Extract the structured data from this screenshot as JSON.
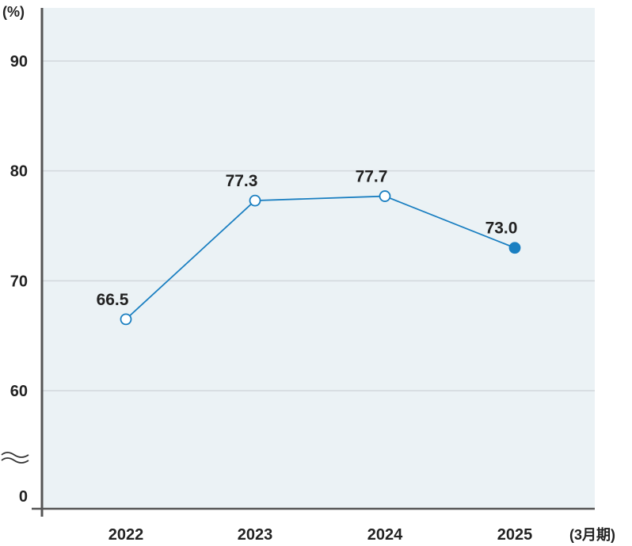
{
  "chart_data": {
    "type": "line",
    "title": "",
    "xlabel": "",
    "ylabel": "",
    "y_unit": "(%)",
    "x_unit": "(3月期)",
    "categories": [
      "2022",
      "2023",
      "2024",
      "2025"
    ],
    "values": [
      66.5,
      77.3,
      77.7,
      73.0
    ],
    "value_labels": [
      "66.5",
      "77.3",
      "77.7",
      "73.0"
    ],
    "yticks": [
      "0",
      "60",
      "70",
      "80",
      "90"
    ],
    "ylim": [
      55,
      95
    ],
    "axis_break": true,
    "grid": true,
    "legend": "none",
    "colors": {
      "line": "#1a7fc1",
      "marker_highlight": "#1a7fc1",
      "marker_open": "#ffffff",
      "plot_bg": "#ebf2f5",
      "grid": "#d2d8dc",
      "axis": "#555555"
    }
  }
}
